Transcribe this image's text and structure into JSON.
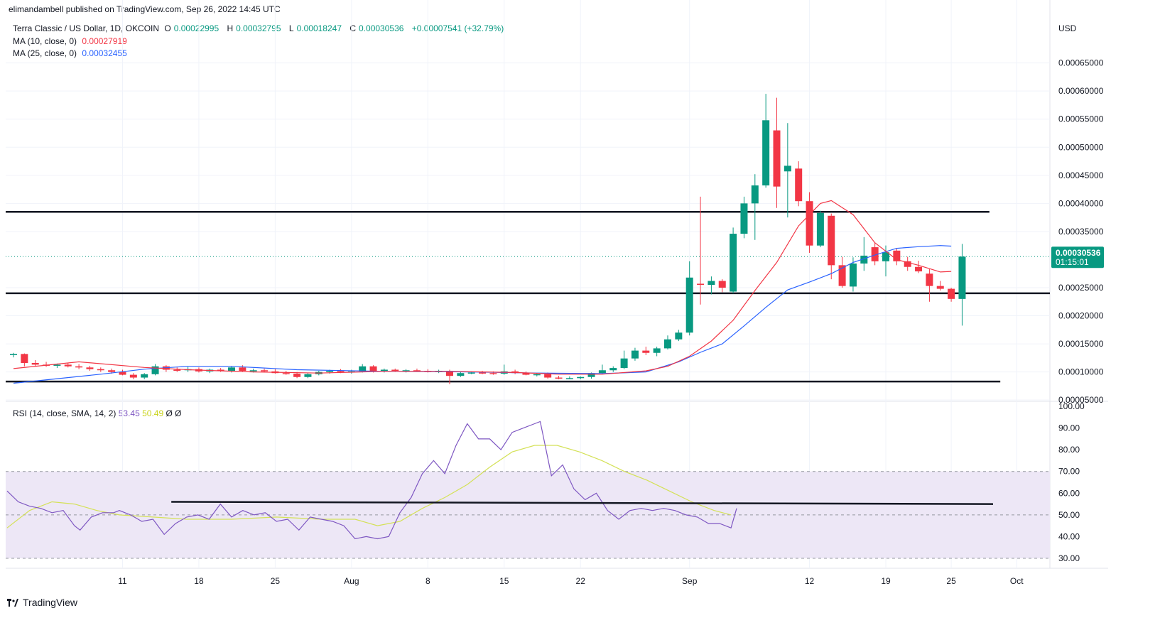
{
  "publisher_line": "elimandambell published on TradingView.com, Sep 26, 2022 14:45 UTC",
  "legend": {
    "symbol": "Terra Classic / US Dollar, 1D, OKCOIN",
    "o_label": "O",
    "o": "0.00022995",
    "h_label": "H",
    "h": "0.00032795",
    "l_label": "L",
    "l": "0.00018247",
    "c_label": "C",
    "c": "0.00030536",
    "change": "+0.00007541 (+32.79%)",
    "ma10_label": "MA (10, close, 0)",
    "ma10_value": "0.00027919",
    "ma25_label": "MA (25, close, 0)",
    "ma25_value": "0.00032455"
  },
  "rsi_legend": {
    "label": "RSI (14, close, SMA, 14, 2)",
    "rsi": "53.45",
    "rsi_ma": "50.49",
    "v3": "Ø",
    "v4": "Ø"
  },
  "currency": "USD",
  "price_badge": {
    "price": "0.00030536",
    "countdown": "01:15:01"
  },
  "brand": "TradingView",
  "colors": {
    "up": "#089981",
    "down": "#f23645",
    "ma10": "#f23645",
    "ma25": "#2962ff",
    "rsi": "#7e57c2",
    "rsi_ma": "#d4e157",
    "rsi_band": "#ede7f6"
  },
  "chart_data": [
    {
      "type": "candlestick",
      "y_ticks": [
        "0.00065000",
        "0.00060000",
        "0.00055000",
        "0.00050000",
        "0.00045000",
        "0.00040000",
        "0.00035000",
        "0.00025000",
        "0.00020000",
        "0.00015000",
        "0.00010000",
        "0.00005000"
      ],
      "ylim": [
        3e-05,
        0.00069
      ],
      "x_ticks": [
        {
          "label": "11",
          "day": 10
        },
        {
          "label": "18",
          "day": 17
        },
        {
          "label": "25",
          "day": 24
        },
        {
          "label": "Aug",
          "day": 31
        },
        {
          "label": "8",
          "day": 38
        },
        {
          "label": "15",
          "day": 45
        },
        {
          "label": "22",
          "day": 52
        },
        {
          "label": "Sep",
          "day": 62
        },
        {
          "label": "12",
          "day": 73
        },
        {
          "label": "19",
          "day": 80
        },
        {
          "label": "25",
          "day": 86
        },
        {
          "label": "Oct",
          "day": 92
        }
      ],
      "candles": [
        [
          0.00013,
          0.000134,
          0.000126,
          0.000132
        ],
        [
          0.000132,
          0.000133,
          0.00011,
          0.000116
        ],
        [
          0.000116,
          0.000121,
          0.00011,
          0.000113
        ],
        [
          0.000113,
          0.000118,
          0.000109,
          0.000111
        ],
        [
          0.000111,
          0.000115,
          0.000107,
          0.000113
        ],
        [
          0.000113,
          0.000116,
          0.000108,
          0.00011
        ],
        [
          0.00011,
          0.000114,
          0.000105,
          0.000108
        ],
        [
          0.000108,
          0.000111,
          0.000102,
          0.000105
        ],
        [
          0.000105,
          0.000108,
          0.0001,
          0.000103
        ],
        [
          0.000103,
          0.000106,
          9.7e-05,
          0.0001
        ],
        [
          0.0001,
          0.000104,
          9.4e-05,
          9.5e-05
        ],
        [
          9.5e-05,
          9.8e-05,
          8.7e-05,
          9e-05
        ],
        [
          9e-05,
          9.8e-05,
          8.7e-05,
          9.6e-05
        ],
        [
          9.6e-05,
          0.000114,
          9.4e-05,
          0.00011
        ],
        [
          0.00011,
          0.000112,
          0.0001,
          0.000104
        ],
        [
          0.000104,
          0.000108,
          0.0001,
          0.000103
        ],
        [
          0.000103,
          0.000109,
          0.0001,
          0.000105
        ],
        [
          0.000105,
          0.000108,
          9.9e-05,
          0.000101
        ],
        [
          0.000101,
          0.000106,
          9.8e-05,
          0.000104
        ],
        [
          0.000104,
          0.000107,
          0.0001,
          0.000102
        ],
        [
          0.000102,
          0.00011,
          9.9e-05,
          0.000108
        ],
        [
          0.000108,
          0.000112,
          0.0001,
          0.000102
        ],
        [
          0.000102,
          0.000106,
          9.9e-05,
          0.000103
        ],
        [
          0.000103,
          0.000106,
          9.9e-05,
          0.000101
        ],
        [
          0.000101,
          0.000105,
          9.7e-05,
          9.8e-05
        ],
        [
          9.8e-05,
          0.000102,
          9.5e-05,
          9.7e-05
        ],
        [
          9.7e-05,
          0.0001,
          8.9e-05,
          9.1e-05
        ],
        [
          9.1e-05,
          9.8e-05,
          8.9e-05,
          9.6e-05
        ],
        [
          9.6e-05,
          0.000102,
          9.4e-05,
          0.0001
        ],
        [
          0.0001,
          0.000104,
          9.7e-05,
          0.000102
        ],
        [
          0.000102,
          0.000105,
          9.8e-05,
          0.0001
        ],
        [
          0.0001,
          0.000104,
          9.7e-05,
          0.000101
        ],
        [
          0.000101,
          0.000114,
          9.9e-05,
          0.00011
        ],
        [
          0.00011,
          0.000112,
          9.9e-05,
          0.000102
        ],
        [
          0.000102,
          0.000106,
          9.9e-05,
          0.000104
        ],
        [
          0.000104,
          0.000106,
          0.0001,
          0.000102
        ],
        [
          0.000102,
          0.000105,
          9.9e-05,
          0.000103
        ],
        [
          0.000103,
          0.000106,
          0.0001,
          0.000102
        ],
        [
          0.000102,
          0.000105,
          9.9e-05,
          0.0001
        ],
        [
          0.0001,
          0.000104,
          9.8e-05,
          0.000102
        ],
        [
          0.000102,
          0.000104,
          7.8e-05,
          9.3e-05
        ],
        [
          9.3e-05,
          0.0001,
          9.1e-05,
          9.8e-05
        ],
        [
          9.8e-05,
          0.000101,
          9.6e-05,
          9.9e-05
        ],
        [
          9.9e-05,
          0.000102,
          9.6e-05,
          9.8e-05
        ],
        [
          9.8e-05,
          0.000101,
          9.5e-05,
          9.7e-05
        ],
        [
          9.7e-05,
          0.000113,
          9.5e-05,
          0.000101
        ],
        [
          0.000101,
          0.000104,
          9.6e-05,
          9.8e-05
        ],
        [
          9.8e-05,
          0.000101,
          9.4e-05,
          9.5e-05
        ],
        [
          9.5e-05,
          9.8e-05,
          9.2e-05,
          9.6e-05
        ],
        [
          9.6e-05,
          9.9e-05,
          8.8e-05,
          9e-05
        ],
        [
          9e-05,
          9.3e-05,
          8.7e-05,
          8.9e-05
        ],
        [
          8.9e-05,
          9.2e-05,
          8.7e-05,
          8.9e-05
        ],
        [
          8.9e-05,
          9.2e-05,
          8.7e-05,
          9.1e-05
        ],
        [
          9.1e-05,
          9.9e-05,
          8.8e-05,
          9.8e-05
        ],
        [
          9.8e-05,
          0.000113,
          9.7e-05,
          0.000103
        ],
        [
          0.000103,
          0.00011,
          0.0001,
          0.000107
        ],
        [
          0.000107,
          0.000138,
          0.000105,
          0.000124
        ],
        [
          0.000124,
          0.000143,
          0.00012,
          0.000138
        ],
        [
          0.000138,
          0.000145,
          0.00013,
          0.000134
        ],
        [
          0.000134,
          0.000145,
          0.000128,
          0.000142
        ],
        [
          0.000142,
          0.000165,
          0.00014,
          0.000158
        ],
        [
          0.000158,
          0.000175,
          0.000155,
          0.00017
        ],
        [
          0.00017,
          0.000297,
          0.000165,
          0.000268
        ],
        [
          0.000257,
          0.000412,
          0.00022,
          0.000255
        ],
        [
          0.000255,
          0.00027,
          0.000238,
          0.000262
        ],
        [
          0.000262,
          0.000265,
          0.000242,
          0.00025
        ],
        [
          0.000243,
          0.000357,
          0.00024,
          0.000346
        ],
        [
          0.000346,
          0.000412,
          0.000338,
          0.0004
        ],
        [
          0.0004,
          0.000452,
          0.000335,
          0.000432
        ],
        [
          0.000432,
          0.000595,
          0.000428,
          0.000548
        ],
        [
          0.00053,
          0.000588,
          0.000392,
          0.00043
        ],
        [
          0.000457,
          0.000543,
          0.000375,
          0.000467
        ],
        [
          0.000462,
          0.000475,
          0.000395,
          0.000404
        ],
        [
          0.000404,
          0.00042,
          0.000312,
          0.000325
        ],
        [
          0.000325,
          0.000387,
          0.000322,
          0.000383
        ],
        [
          0.000378,
          0.000382,
          0.000265,
          0.00029
        ],
        [
          0.00029,
          0.000305,
          0.00025,
          0.000253
        ],
        [
          0.000252,
          0.000304,
          0.000243,
          0.000293
        ],
        [
          0.000293,
          0.00034,
          0.00028,
          0.000307
        ],
        [
          0.000322,
          0.00033,
          0.00029,
          0.000297
        ],
        [
          0.000297,
          0.000325,
          0.00027,
          0.000313
        ],
        [
          0.000316,
          0.00032,
          0.00029,
          0.000297
        ],
        [
          0.000297,
          0.000305,
          0.00028,
          0.000287
        ],
        [
          0.000287,
          0.000298,
          0.000276,
          0.000279
        ],
        [
          0.000275,
          0.000283,
          0.000225,
          0.000253
        ],
        [
          0.000253,
          0.000262,
          0.000245,
          0.000248
        ],
        [
          0.000248,
          0.00025,
          0.000225,
          0.00023
        ],
        [
          0.00022995,
          0.00032795,
          0.00018247,
          0.00030536
        ]
      ],
      "ma10": [
        [
          0,
          0.000106
        ],
        [
          6,
          0.000118
        ],
        [
          12,
          0.000108
        ],
        [
          16,
          0.000104
        ],
        [
          22,
          0.0001
        ],
        [
          28,
          9.8e-05
        ],
        [
          34,
          0.000101
        ],
        [
          40,
          0.000101
        ],
        [
          46,
          9.9e-05
        ],
        [
          50,
          9.6e-05
        ],
        [
          54,
          9.6e-05
        ],
        [
          58,
          0.000102
        ],
        [
          60,
          0.00011
        ],
        [
          62,
          0.000128
        ],
        [
          64,
          0.000155
        ],
        [
          66,
          0.000192
        ],
        [
          68,
          0.000245
        ],
        [
          70,
          0.000295
        ],
        [
          72,
          0.00036
        ],
        [
          74,
          0.0004
        ],
        [
          75,
          0.000405
        ],
        [
          77,
          0.00038
        ],
        [
          79,
          0.00033
        ],
        [
          81,
          0.0003
        ],
        [
          83,
          0.00029
        ],
        [
          85,
          0.000278
        ],
        [
          86,
          0.000279
        ]
      ],
      "ma25": [
        [
          0,
          8e-05
        ],
        [
          8,
          9.6e-05
        ],
        [
          12,
          0.000105
        ],
        [
          16,
          0.00011
        ],
        [
          20,
          0.00011
        ],
        [
          26,
          0.000104
        ],
        [
          34,
          0.000101
        ],
        [
          42,
          0.0001
        ],
        [
          48,
          9.8e-05
        ],
        [
          54,
          9.7e-05
        ],
        [
          58,
          0.0001
        ],
        [
          61,
          0.000118
        ],
        [
          63,
          0.000135
        ],
        [
          65,
          0.00015
        ],
        [
          67,
          0.000182
        ],
        [
          69,
          0.000215
        ],
        [
          71,
          0.000246
        ],
        [
          73,
          0.00026
        ],
        [
          75,
          0.000275
        ],
        [
          77,
          0.000295
        ],
        [
          79,
          0.000308
        ],
        [
          81,
          0.00032
        ],
        [
          83,
          0.000323
        ],
        [
          85,
          0.000325
        ],
        [
          86,
          0.000324
        ]
      ],
      "horizontal_lines": [
        {
          "value": 0.000385,
          "from_day": 0,
          "to_day": 89.5
        },
        {
          "value": 0.00024,
          "from_day": 0,
          "to_day": 999
        },
        {
          "value": 8.3e-05,
          "from_day": 0,
          "to_day": 90.5
        }
      ],
      "last_price": 0.00030536
    },
    {
      "type": "line",
      "name": "RSI",
      "y_ticks": [
        "100.00",
        "90.00",
        "80.00",
        "70.00",
        "60.00",
        "50.00",
        "40.00",
        "30.00"
      ],
      "ylim": [
        30,
        100
      ],
      "band": [
        30,
        70
      ],
      "mid": 50,
      "rsi": [
        [
          0,
          61
        ],
        [
          2,
          56
        ],
        [
          4,
          54
        ],
        [
          6,
          53
        ],
        [
          8,
          51
        ],
        [
          10,
          52
        ],
        [
          12,
          45
        ],
        [
          13,
          43
        ],
        [
          15,
          49
        ],
        [
          17,
          51
        ],
        [
          19,
          51
        ],
        [
          20,
          52
        ],
        [
          22,
          50
        ],
        [
          24,
          47
        ],
        [
          26,
          48
        ],
        [
          28,
          41
        ],
        [
          30,
          46
        ],
        [
          32,
          49
        ],
        [
          34,
          50
        ],
        [
          36,
          48
        ],
        [
          38,
          55
        ],
        [
          40,
          49
        ],
        [
          42,
          52
        ],
        [
          44,
          50
        ],
        [
          46,
          51
        ],
        [
          48,
          47
        ],
        [
          50,
          48
        ],
        [
          52,
          43
        ],
        [
          54,
          49
        ],
        [
          56,
          48
        ],
        [
          58,
          47
        ],
        [
          60,
          45
        ],
        [
          62,
          39
        ],
        [
          64,
          40
        ],
        [
          66,
          39
        ],
        [
          68,
          40
        ],
        [
          70,
          51
        ],
        [
          72,
          58
        ],
        [
          74,
          69
        ],
        [
          76,
          75
        ],
        [
          78,
          69
        ],
        [
          80,
          82
        ],
        [
          82,
          92
        ],
        [
          84,
          85
        ],
        [
          86,
          85
        ],
        [
          88,
          80
        ],
        [
          90,
          88
        ],
        [
          92,
          90
        ],
        [
          94,
          92
        ],
        [
          95,
          93
        ],
        [
          97,
          68
        ],
        [
          99,
          73
        ],
        [
          101,
          62
        ],
        [
          103,
          57
        ],
        [
          105,
          60
        ],
        [
          107,
          52
        ],
        [
          109,
          48
        ],
        [
          111,
          52
        ],
        [
          113,
          53
        ],
        [
          115,
          52
        ],
        [
          117,
          53
        ],
        [
          119,
          52
        ],
        [
          121,
          50
        ],
        [
          123,
          49
        ],
        [
          125,
          46
        ],
        [
          127,
          46
        ],
        [
          129,
          44
        ],
        [
          130,
          53
        ]
      ],
      "rsi_ma": [
        [
          0,
          44
        ],
        [
          4,
          52
        ],
        [
          8,
          56
        ],
        [
          12,
          55
        ],
        [
          16,
          52
        ],
        [
          20,
          50
        ],
        [
          26,
          49
        ],
        [
          32,
          48
        ],
        [
          40,
          48
        ],
        [
          48,
          49
        ],
        [
          56,
          48
        ],
        [
          62,
          48
        ],
        [
          66,
          45
        ],
        [
          70,
          47
        ],
        [
          74,
          53
        ],
        [
          78,
          58
        ],
        [
          82,
          64
        ],
        [
          86,
          72
        ],
        [
          90,
          79
        ],
        [
          94,
          82
        ],
        [
          98,
          82
        ],
        [
          102,
          79
        ],
        [
          106,
          75
        ],
        [
          110,
          70
        ],
        [
          114,
          66
        ],
        [
          118,
          61
        ],
        [
          122,
          56
        ],
        [
          126,
          52
        ],
        [
          129,
          50
        ]
      ],
      "trend_line": {
        "from_index": 22,
        "to_index": 138,
        "value_start": 56,
        "value_end": 55
      }
    }
  ]
}
